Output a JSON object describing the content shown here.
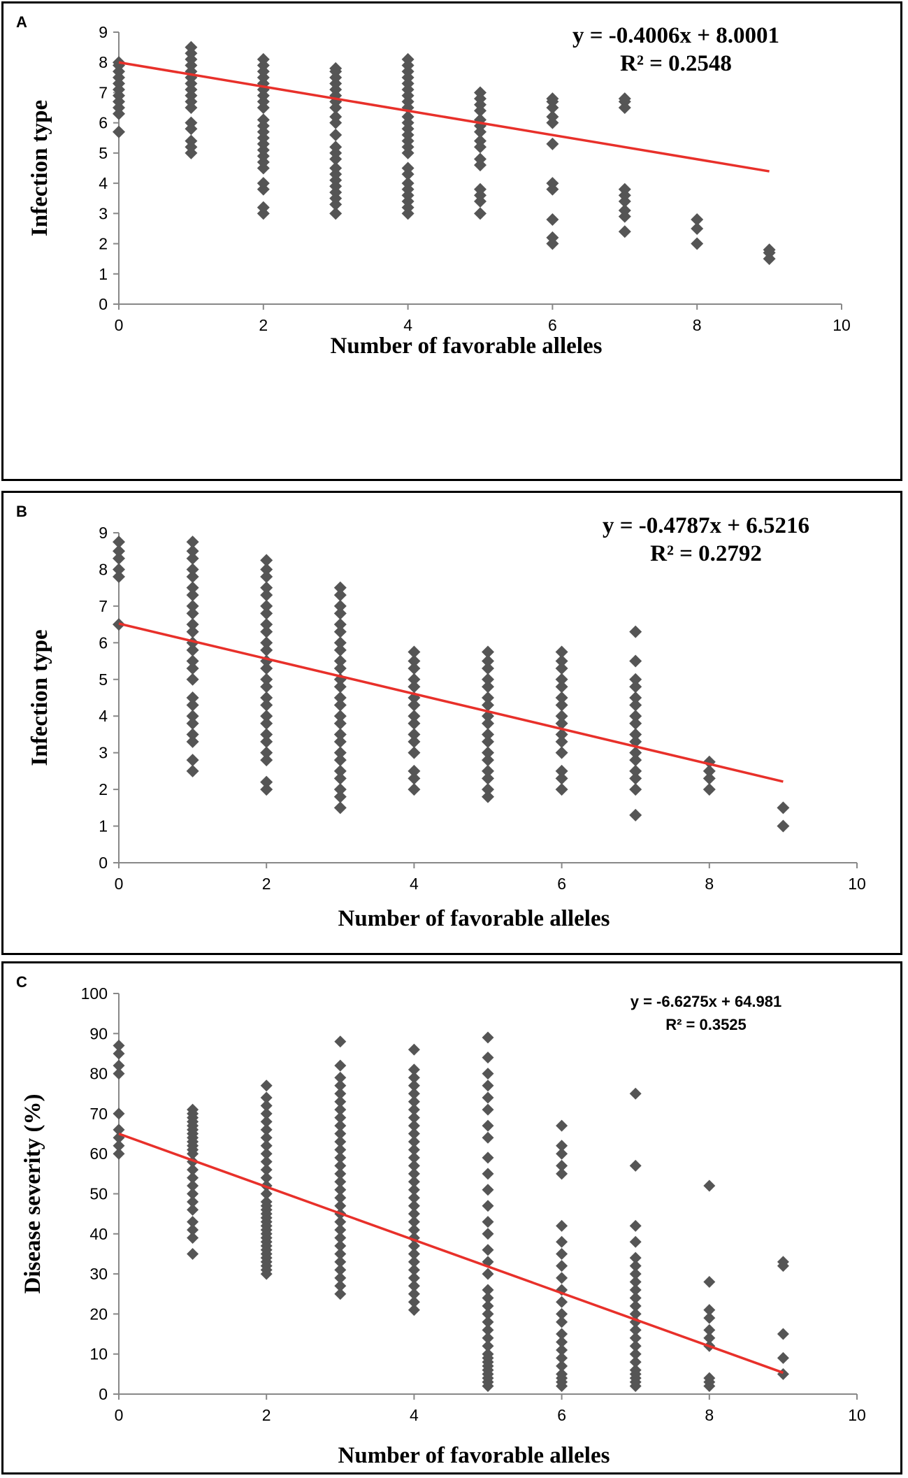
{
  "chart_data": [
    {
      "type": "scatter",
      "panel_label": "A",
      "title": "",
      "xlabel": "Number  of  favorable  alleles",
      "ylabel": "Infection type",
      "xlim": [
        0,
        10
      ],
      "ylim": [
        0,
        9
      ],
      "xticks": [
        0,
        2,
        4,
        6,
        8,
        10
      ],
      "yticks": [
        0,
        1,
        2,
        3,
        4,
        5,
        6,
        7,
        8,
        9
      ],
      "equation": "y = -0.4006x + 8.0001",
      "r_squared": "R² = 0.2548",
      "trendline": {
        "slope": -0.4006,
        "intercept": 8.0001,
        "x_range": [
          0,
          9
        ]
      },
      "series": [
        {
          "x": 0,
          "y": [
            5.7,
            6.3,
            6.5,
            6.7,
            6.9,
            7.1,
            7.3,
            7.5,
            7.7,
            7.9,
            8.0
          ]
        },
        {
          "x": 1,
          "y": [
            5.0,
            5.2,
            5.4,
            5.8,
            6.0,
            6.5,
            6.7,
            6.9,
            7.1,
            7.3,
            7.5,
            7.7,
            7.9,
            8.1,
            8.3,
            8.5
          ]
        },
        {
          "x": 2,
          "y": [
            3.0,
            3.2,
            3.8,
            4.0,
            4.5,
            4.7,
            4.9,
            5.1,
            5.3,
            5.5,
            5.7,
            5.9,
            6.1,
            6.5,
            6.7,
            6.9,
            7.1,
            7.3,
            7.5,
            7.7,
            7.9,
            8.1
          ]
        },
        {
          "x": 3,
          "y": [
            3.0,
            3.3,
            3.5,
            3.7,
            3.9,
            4.1,
            4.3,
            4.5,
            4.8,
            5.0,
            5.2,
            5.6,
            6.0,
            6.2,
            6.5,
            6.7,
            6.9,
            7.1,
            7.3,
            7.5,
            7.7,
            7.8
          ]
        },
        {
          "x": 4,
          "y": [
            3.0,
            3.2,
            3.4,
            3.6,
            3.8,
            4.0,
            4.3,
            4.5,
            5.0,
            5.2,
            5.4,
            5.6,
            5.8,
            6.0,
            6.2,
            6.5,
            6.7,
            6.9,
            7.1,
            7.3,
            7.5,
            7.7,
            7.9,
            8.1
          ]
        },
        {
          "x": 5,
          "y": [
            3.0,
            3.4,
            3.6,
            3.8,
            4.6,
            4.8,
            5.2,
            5.4,
            5.7,
            5.9,
            6.1,
            6.4,
            6.6,
            6.8,
            7.0
          ]
        },
        {
          "x": 6,
          "y": [
            2.0,
            2.2,
            2.8,
            3.8,
            4.0,
            5.3,
            6.0,
            6.2,
            6.5,
            6.7,
            6.8
          ]
        },
        {
          "x": 7,
          "y": [
            2.4,
            2.9,
            3.1,
            3.4,
            3.6,
            3.8,
            6.5,
            6.7,
            6.8
          ]
        },
        {
          "x": 8,
          "y": [
            2.0,
            2.5,
            2.8
          ]
        },
        {
          "x": 9,
          "y": [
            1.5,
            1.7,
            1.8
          ]
        }
      ]
    },
    {
      "type": "scatter",
      "panel_label": "B",
      "title": "",
      "xlabel": "Number  of  favorable  alleles",
      "ylabel": "Infection type",
      "xlim": [
        0,
        10
      ],
      "ylim": [
        0,
        9
      ],
      "xticks": [
        0,
        2,
        4,
        6,
        8,
        10
      ],
      "yticks": [
        0,
        1,
        2,
        3,
        4,
        5,
        6,
        7,
        8,
        9
      ],
      "equation": "y = -0.4787x + 6.5216",
      "r_squared": "R² = 0.2792",
      "trendline": {
        "slope": -0.4787,
        "intercept": 6.5216,
        "x_range": [
          0,
          9
        ]
      },
      "series": [
        {
          "x": 0,
          "y": [
            6.5,
            7.8,
            8.0,
            8.3,
            8.5,
            8.75
          ]
        },
        {
          "x": 1,
          "y": [
            2.5,
            2.8,
            3.3,
            3.5,
            3.8,
            4.0,
            4.3,
            4.5,
            5.0,
            5.3,
            5.5,
            5.8,
            6.0,
            6.3,
            6.5,
            6.8,
            7.0,
            7.3,
            7.5,
            7.8,
            8.0,
            8.3,
            8.5,
            8.75
          ]
        },
        {
          "x": 2,
          "y": [
            2.0,
            2.2,
            2.8,
            3.0,
            3.3,
            3.5,
            3.8,
            4.0,
            4.3,
            4.5,
            4.8,
            5.0,
            5.3,
            5.5,
            5.8,
            6.0,
            6.3,
            6.5,
            6.8,
            7.0,
            7.3,
            7.5,
            7.8,
            8.0,
            8.25
          ]
        },
        {
          "x": 3,
          "y": [
            1.5,
            1.8,
            2.0,
            2.3,
            2.5,
            2.8,
            3.0,
            3.3,
            3.5,
            3.8,
            4.0,
            4.3,
            4.5,
            4.8,
            5.0,
            5.3,
            5.5,
            5.8,
            6.0,
            6.3,
            6.5,
            6.8,
            7.0,
            7.3,
            7.5
          ]
        },
        {
          "x": 4,
          "y": [
            2.0,
            2.3,
            2.5,
            3.0,
            3.3,
            3.5,
            3.8,
            4.0,
            4.3,
            4.5,
            4.8,
            5.0,
            5.3,
            5.5,
            5.75
          ]
        },
        {
          "x": 5,
          "y": [
            1.8,
            2.0,
            2.3,
            2.5,
            2.8,
            3.0,
            3.3,
            3.5,
            3.8,
            4.0,
            4.3,
            4.5,
            4.8,
            5.0,
            5.3,
            5.5,
            5.75
          ]
        },
        {
          "x": 6,
          "y": [
            2.0,
            2.3,
            2.5,
            3.0,
            3.3,
            3.5,
            3.8,
            4.0,
            4.3,
            4.5,
            4.8,
            5.0,
            5.3,
            5.5,
            5.75
          ]
        },
        {
          "x": 7,
          "y": [
            1.3,
            2.0,
            2.3,
            2.5,
            2.8,
            3.0,
            3.3,
            3.5,
            3.8,
            4.0,
            4.3,
            4.5,
            4.8,
            5.0,
            5.5,
            6.3
          ]
        },
        {
          "x": 8,
          "y": [
            2.0,
            2.3,
            2.5,
            2.75
          ]
        },
        {
          "x": 9,
          "y": [
            1.0,
            1.5
          ]
        }
      ]
    },
    {
      "type": "scatter",
      "panel_label": "C",
      "title": "",
      "xlabel": "Number  of  favorable  alleles",
      "ylabel": "Disease severity (%)",
      "xlim": [
        0,
        10
      ],
      "ylim": [
        0,
        100
      ],
      "xticks": [
        0,
        2,
        4,
        6,
        8,
        10
      ],
      "yticks": [
        0,
        10,
        20,
        30,
        40,
        50,
        60,
        70,
        80,
        90,
        100
      ],
      "equation": "y = -6.6275x + 64.981",
      "r_squared": "R² = 0.3525",
      "trendline": {
        "slope": -6.6275,
        "intercept": 64.981,
        "x_range": [
          0,
          9
        ]
      },
      "series": [
        {
          "x": 0,
          "y": [
            60,
            62,
            64,
            66,
            70,
            80,
            82,
            85,
            87
          ]
        },
        {
          "x": 1,
          "y": [
            35,
            39,
            41,
            43,
            46,
            48,
            50,
            52,
            54,
            56,
            58,
            60,
            61,
            62,
            63,
            64,
            65,
            66,
            67,
            68,
            69,
            70,
            71
          ]
        },
        {
          "x": 2,
          "y": [
            30,
            31,
            32,
            33,
            34,
            35,
            36,
            37,
            38,
            39,
            40,
            41,
            42,
            43,
            44,
            45,
            46,
            47,
            48,
            50,
            52,
            54,
            56,
            58,
            60,
            62,
            64,
            66,
            68,
            70,
            72,
            74,
            77
          ]
        },
        {
          "x": 3,
          "y": [
            25,
            27,
            29,
            31,
            33,
            35,
            37,
            39,
            41,
            43,
            45,
            47,
            49,
            51,
            53,
            55,
            57,
            59,
            61,
            63,
            65,
            67,
            69,
            71,
            73,
            75,
            77,
            79,
            82,
            88
          ]
        },
        {
          "x": 4,
          "y": [
            21,
            23,
            25,
            27,
            29,
            31,
            33,
            35,
            37,
            39,
            41,
            43,
            45,
            47,
            49,
            51,
            53,
            55,
            57,
            59,
            61,
            63,
            65,
            67,
            69,
            71,
            73,
            75,
            77,
            79,
            81,
            86
          ]
        },
        {
          "x": 5,
          "y": [
            2,
            3,
            4,
            5,
            6,
            7,
            8,
            9,
            10,
            12,
            14,
            16,
            18,
            20,
            22,
            24,
            26,
            30,
            33,
            36,
            40,
            43,
            47,
            51,
            55,
            59,
            64,
            67,
            71,
            74,
            77,
            80,
            84,
            89
          ]
        },
        {
          "x": 6,
          "y": [
            2,
            3,
            4,
            5,
            7,
            9,
            11,
            13,
            15,
            18,
            20,
            23,
            26,
            29,
            32,
            35,
            38,
            42,
            55,
            57,
            60,
            62,
            67
          ]
        },
        {
          "x": 7,
          "y": [
            2,
            3,
            4,
            5,
            6,
            8,
            10,
            12,
            14,
            16,
            18,
            20,
            22,
            24,
            26,
            28,
            30,
            32,
            34,
            38,
            42,
            57,
            75
          ]
        },
        {
          "x": 8,
          "y": [
            2,
            3,
            4,
            12,
            14,
            16,
            19,
            21,
            28,
            52
          ]
        },
        {
          "x": 9,
          "y": [
            5,
            9,
            15,
            32,
            33
          ]
        }
      ]
    }
  ]
}
